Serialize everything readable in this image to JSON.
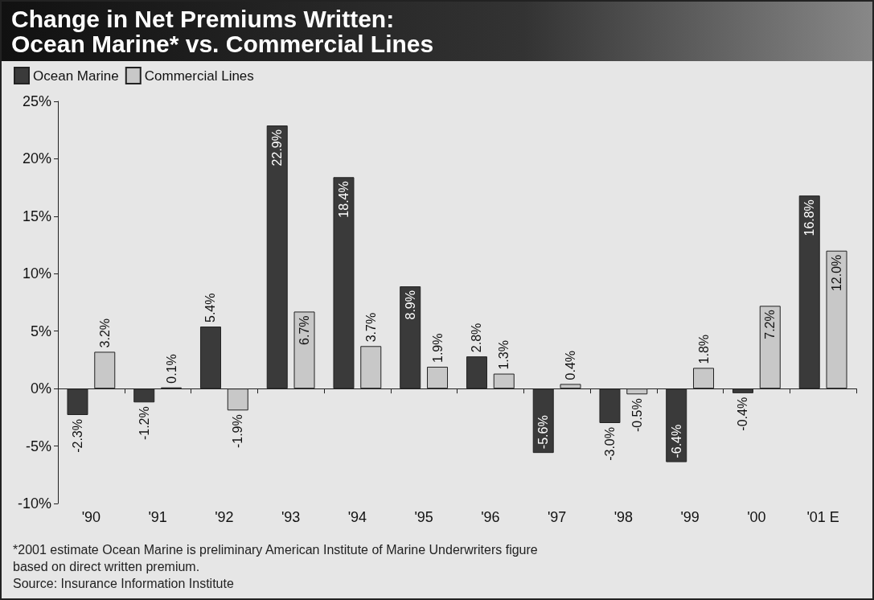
{
  "chart_data": {
    "type": "bar",
    "title": "Change in Net Premiums Written: Ocean Marine* vs. Commercial Lines",
    "categories": [
      "'90",
      "'91",
      "'92",
      "'93",
      "'94",
      "'95",
      "'96",
      "'97",
      "'98",
      "'99",
      "'00",
      "'01 E"
    ],
    "series": [
      {
        "name": "Ocean Marine",
        "color": "#3a3a3a",
        "values": [
          -2.3,
          -1.2,
          5.4,
          22.9,
          18.4,
          8.9,
          2.8,
          -5.6,
          -3.0,
          -6.4,
          -0.4,
          16.8
        ],
        "value_labels": [
          "-2.3%",
          "-1.2%",
          "5.4%",
          "22.9%",
          "18.4%",
          "8.9%",
          "2.8%",
          "-5.6%",
          "-3.0%",
          "-6.4%",
          "-0.4%",
          "16.8%"
        ]
      },
      {
        "name": "Commercial Lines",
        "color": "#c8c8c8",
        "values": [
          3.2,
          0.1,
          -1.9,
          6.7,
          3.7,
          1.9,
          1.3,
          0.4,
          -0.5,
          1.8,
          7.2,
          12.0
        ],
        "value_labels": [
          "3.2%",
          "0.1%",
          "-1.9%",
          "6.7%",
          "3.7%",
          "1.9%",
          "1.3%",
          "0.4%",
          "-0.5%",
          "1.8%",
          "7.2%",
          "12.0%"
        ]
      }
    ],
    "ylim": [
      -10,
      25
    ],
    "yticks": [
      {
        "value": -10,
        "label": "-10%"
      },
      {
        "value": -5,
        "label": "-5%"
      },
      {
        "value": 0,
        "label": "0%"
      },
      {
        "value": 5,
        "label": "5%"
      },
      {
        "value": 10,
        "label": "10%"
      },
      {
        "value": 15,
        "label": "15%"
      },
      {
        "value": 20,
        "label": "20%"
      },
      {
        "value": 25,
        "label": "25%"
      }
    ],
    "legend": "top left",
    "annotations": [
      "*2001 estimate Ocean Marine is preliminary American Institute of Marine Underwriters figure based on direct written premium.",
      "Source: Insurance Information Institute"
    ]
  }
}
